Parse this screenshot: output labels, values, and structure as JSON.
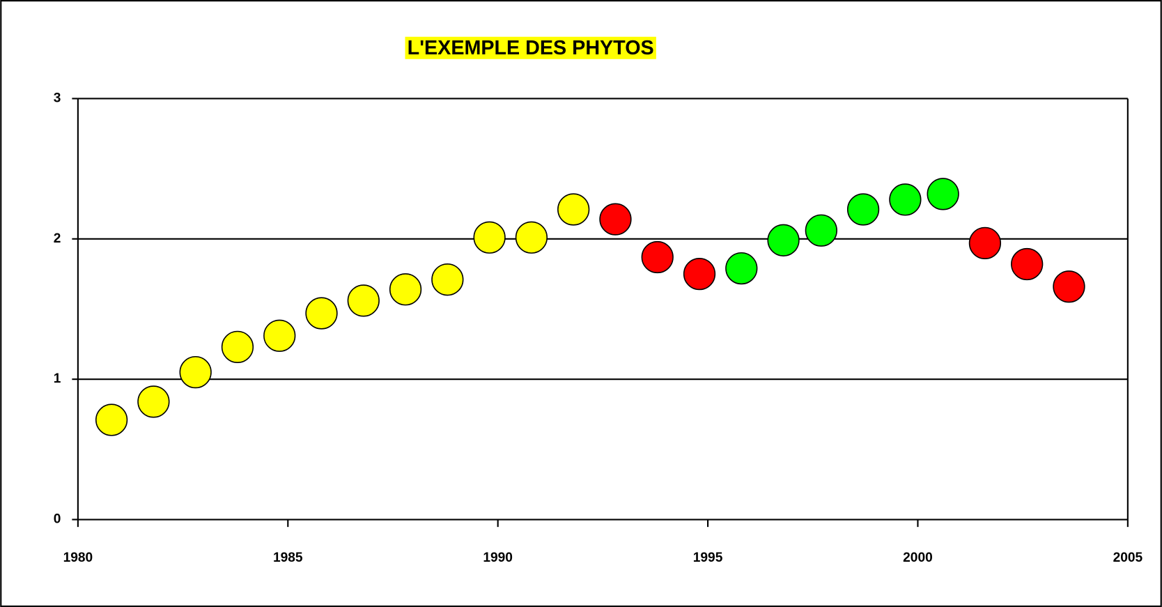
{
  "chart_data": {
    "type": "scatter",
    "title": "L'EXEMPLE DES PHYTOS",
    "x": [
      1980.8,
      1981.8,
      1982.8,
      1983.8,
      1984.8,
      1985.8,
      1986.8,
      1987.8,
      1988.8,
      1989.8,
      1990.8,
      1991.8,
      1992.8,
      1993.8,
      1994.8,
      1995.8,
      1996.8,
      1997.7,
      1998.7,
      1999.7,
      2000.6,
      2001.6,
      2002.6,
      2003.6
    ],
    "values": [
      0.71,
      0.84,
      1.05,
      1.23,
      1.31,
      1.47,
      1.56,
      1.64,
      1.71,
      2.01,
      2.01,
      2.21,
      2.14,
      1.87,
      1.75,
      1.79,
      1.99,
      2.06,
      2.21,
      2.28,
      2.32,
      1.97,
      1.82,
      1.66
    ],
    "colors": [
      "#ffff00",
      "#ffff00",
      "#ffff00",
      "#ffff00",
      "#ffff00",
      "#ffff00",
      "#ffff00",
      "#ffff00",
      "#ffff00",
      "#ffff00",
      "#ffff00",
      "#ffff00",
      "#ff0000",
      "#ff0000",
      "#ff0000",
      "#00ff00",
      "#00ff00",
      "#00ff00",
      "#00ff00",
      "#00ff00",
      "#00ff00",
      "#ff0000",
      "#ff0000",
      "#ff0000"
    ],
    "xlim": [
      1980,
      2005
    ],
    "xticks": [
      1980,
      1985,
      1990,
      1995,
      2000,
      2005
    ],
    "ylim": [
      0,
      3
    ],
    "yticks": [
      0,
      1,
      2,
      3
    ],
    "grid": true
  }
}
